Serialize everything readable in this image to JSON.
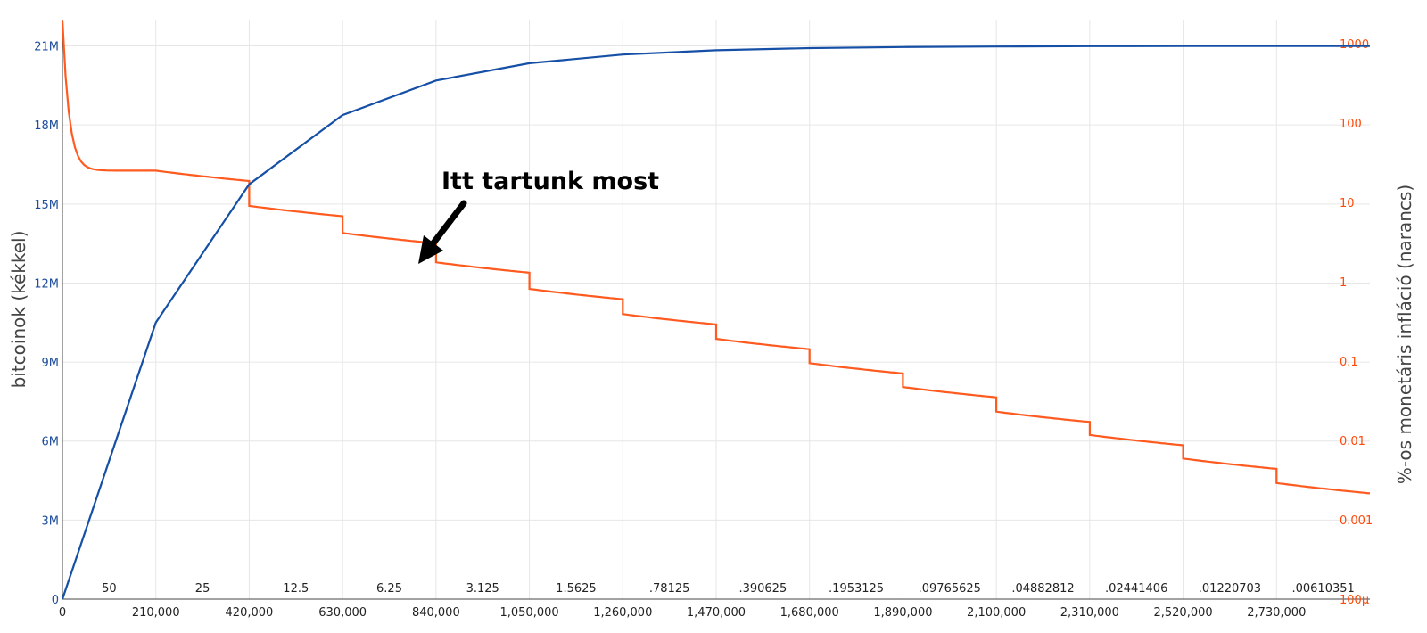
{
  "chart_data": {
    "type": "line",
    "xlabel": "",
    "ylabel": "bitcoinok (kékkel)",
    "y2label": "%-os monetáris infláció (narancs)",
    "xlim": [
      0,
      2940000
    ],
    "ylim": [
      0,
      22000000
    ],
    "y2lim_log": [
      0.0001,
      2000
    ],
    "y2_scale": "log",
    "grid": true,
    "x_ticks": [
      0,
      210000,
      420000,
      630000,
      840000,
      1050000,
      1260000,
      1470000,
      1680000,
      1890000,
      2100000,
      2310000,
      2520000,
      2730000
    ],
    "x_tick_labels": [
      "0",
      "210,000",
      "420,000",
      "630,000",
      "840,000",
      "1,050,000",
      "1,260,000",
      "1,470,000",
      "1,680,000",
      "1,890,000",
      "2,100,000",
      "2,310,000",
      "2,520,000",
      "2,730,000"
    ],
    "y_ticks": [
      0,
      3000000,
      6000000,
      9000000,
      12000000,
      15000000,
      18000000,
      21000000
    ],
    "y_tick_labels": [
      "0",
      "3M",
      "6M",
      "9M",
      "12M",
      "15M",
      "18M",
      "21M"
    ],
    "y2_ticks": [
      0.0001,
      0.001,
      0.01,
      0.1,
      1,
      10,
      100,
      1000
    ],
    "y2_tick_labels": [
      "100µ",
      "0.001",
      "0.01",
      "0.1",
      "1",
      "10",
      "100",
      "1000"
    ],
    "block_rewards": [
      "50",
      "25",
      "12.5",
      "6.25",
      "3.125",
      "1.5625",
      ".78125",
      ".390625",
      ".1953125",
      ".09765625",
      ".04882812",
      ".02441406",
      ".01220703",
      ".00610351"
    ],
    "series": [
      {
        "name": "bitcoinok",
        "color": "#1550a6",
        "x": [
          0,
          210000,
          420000,
          630000,
          840000,
          1050000,
          1260000,
          1470000,
          1680000,
          1890000,
          2100000,
          2310000,
          2520000,
          2730000,
          2940000
        ],
        "y": [
          0,
          10500000,
          15750000,
          18375000,
          19687500,
          20343750,
          20671875,
          20835937,
          20917968,
          20958984,
          20979492,
          20989746,
          20994873,
          20997436,
          20998718
        ]
      },
      {
        "name": "infláció",
        "color": "#ff5a1f",
        "x": [
          0,
          210000,
          420000,
          630000,
          840000,
          1050000,
          1260000,
          1470000,
          1680000,
          1890000,
          2100000,
          2310000,
          2520000,
          2730000,
          2940000
        ],
        "y": [
          2000,
          25,
          9,
          4.1,
          1.75,
          0.81,
          0.39,
          0.19,
          0.094,
          0.047,
          0.023,
          0.0117,
          0.0059,
          0.0029,
          0.0015
        ]
      }
    ],
    "annotation": "Itt tartunk most"
  }
}
